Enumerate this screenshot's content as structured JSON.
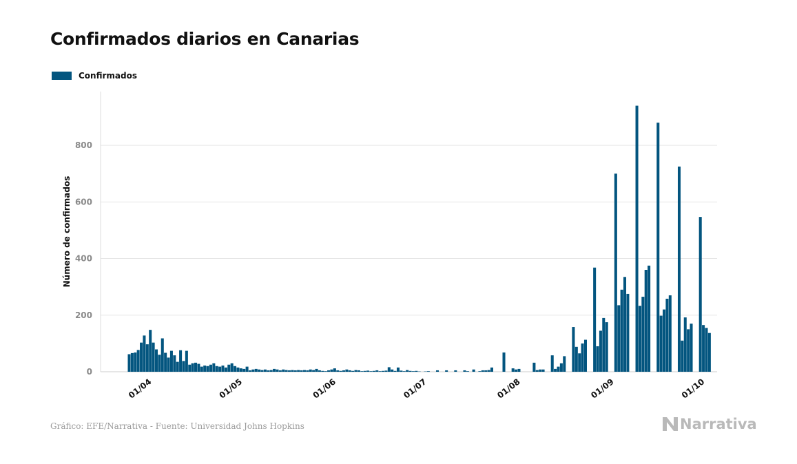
{
  "chart_data": {
    "type": "bar",
    "title": "Confirmados diarios en Canarias",
    "ylabel": "Número de confirmados",
    "xlabel": "",
    "ylim": [
      0,
      990
    ],
    "yticks": [
      0,
      200,
      400,
      600,
      800
    ],
    "grid": true,
    "legend_position": "top-left",
    "x_start": "2020-03-15",
    "x_end": "2020-10-05",
    "xticks": [
      {
        "date": "2020-04-01",
        "label": "01/04"
      },
      {
        "date": "2020-05-01",
        "label": "01/05"
      },
      {
        "date": "2020-06-01",
        "label": "01/06"
      },
      {
        "date": "2020-07-01",
        "label": "01/07"
      },
      {
        "date": "2020-08-01",
        "label": "01/08"
      },
      {
        "date": "2020-09-01",
        "label": "01/09"
      },
      {
        "date": "2020-10-01",
        "label": "01/10"
      }
    ],
    "series": [
      {
        "name": "Confirmados",
        "color": "#03557f",
        "start_date": "2020-03-24",
        "values": [
          62,
          66,
          68,
          77,
          103,
          128,
          97,
          148,
          103,
          79,
          60,
          118,
          67,
          50,
          74,
          58,
          35,
          76,
          38,
          74,
          25,
          30,
          32,
          28,
          18,
          22,
          20,
          25,
          30,
          20,
          18,
          22,
          15,
          25,
          30,
          20,
          15,
          12,
          10,
          18,
          5,
          8,
          10,
          8,
          6,
          8,
          5,
          6,
          10,
          8,
          5,
          8,
          6,
          5,
          6,
          5,
          6,
          5,
          6,
          5,
          8,
          6,
          10,
          5,
          3,
          2,
          5,
          8,
          12,
          5,
          3,
          5,
          8,
          5,
          3,
          6,
          5,
          2,
          3,
          4,
          2,
          3,
          5,
          2,
          3,
          4,
          16,
          8,
          3,
          15,
          4,
          2,
          6,
          3,
          2,
          3,
          1,
          0,
          1,
          2,
          0,
          0,
          5,
          0,
          0,
          5,
          0,
          0,
          5,
          0,
          0,
          5,
          2,
          0,
          8,
          0,
          2,
          5,
          5,
          6,
          15,
          0,
          0,
          0,
          68,
          0,
          0,
          12,
          8,
          10,
          0,
          0,
          0,
          0,
          32,
          6,
          8,
          8,
          0,
          0,
          58,
          10,
          18,
          30,
          55,
          0,
          0,
          158,
          88,
          65,
          100,
          113,
          0,
          0,
          368,
          90,
          145,
          190,
          175,
          0,
          0,
          700,
          235,
          290,
          335,
          275,
          0,
          0,
          940,
          233,
          265,
          360,
          375,
          0,
          0,
          880,
          198,
          220,
          258,
          270,
          0,
          0,
          725,
          110,
          192,
          150,
          170,
          0,
          0,
          547,
          165,
          155,
          137
        ]
      }
    ]
  },
  "legend": {
    "label": "Confirmados",
    "color": "#03557f"
  },
  "footer": {
    "source": "Gráfico: EFE/Narrativa - Fuente: Universidad Johns Hopkins",
    "brand": "Narrativa"
  }
}
